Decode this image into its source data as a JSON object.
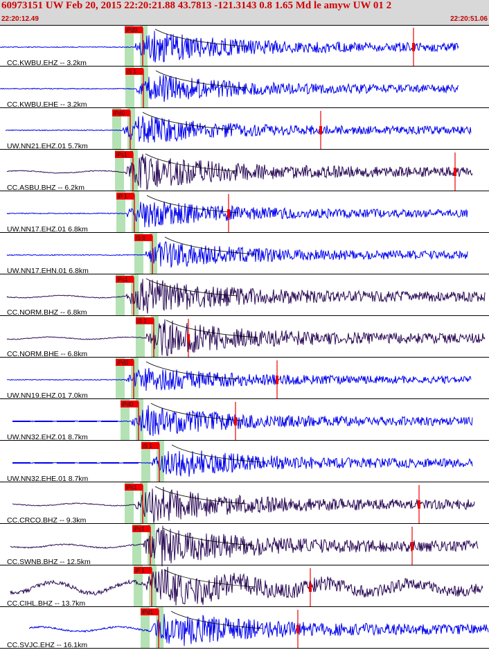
{
  "header": {
    "title": "60973151 UW Feb 20, 2015 22:20:21.88   43.7813 -121.3143  0.8 1.65 Md le amyw UW 01    2",
    "start_time": "22:20:12.49",
    "end_time": "22:20:51.06"
  },
  "colors": {
    "header_bg": "#d8d8d8",
    "title": "#d00000",
    "blue_trace": "#0000ee",
    "dark_trace": "#2a0a55",
    "pick": "#ee0000",
    "window": "#b4e2b4",
    "coda": "#000000"
  },
  "chart_data": {
    "type": "seismogram",
    "traces": [
      {
        "label": "CC.KWBU.EHZ -- 3.2km",
        "pick": "iPd0",
        "color": "blue"
      },
      {
        "label": "CC.KWBU.EHE -- 3.2km",
        "pick": "iS 1",
        "color": "blue"
      },
      {
        "label": "UW.NN21.EHZ.01 5.7km",
        "pick": "iPd0",
        "color": "blue"
      },
      {
        "label": "CC.ASBU.BHZ -- 6.2km",
        "pick": "iPc1",
        "color": "dark"
      },
      {
        "label": "UW.NN17.EHZ.01 6.8km",
        "pick": "iP 1",
        "color": "blue"
      },
      {
        "label": "UW.NN17.EHN.01 6.8km",
        "pick": "iS 0",
        "color": "blue"
      },
      {
        "label": "CC.NORM.BHZ -- 6.8km",
        "pick": "iPc1",
        "color": "dark"
      },
      {
        "label": "CC.NORM.BHE -- 6.8km",
        "pick": "iS 1",
        "color": "dark"
      },
      {
        "label": "UW.NN19.EHZ.01 7.0km",
        "pick": "iPd0",
        "color": "blue"
      },
      {
        "label": "UW.NN32.EHZ.01 8.7km",
        "pick": "iPd0",
        "color": "blue"
      },
      {
        "label": "UW.NN32.EHE.01 8.7km",
        "pick": "iS 1",
        "color": "blue"
      },
      {
        "label": "CC.CRCO.BHZ -- 9.3km",
        "pick": "iPc1",
        "color": "dark"
      },
      {
        "label": "CC.SWNB.BHZ -- 12.5km",
        "pick": "iPc1",
        "color": "dark"
      },
      {
        "label": "CC.CIHL.BHZ -- 13.7km",
        "pick": "iP 1",
        "color": "dark"
      },
      {
        "label": "CC.SVJC.EHZ -- 16.1km",
        "pick": "iPd1",
        "color": "blue"
      }
    ]
  }
}
